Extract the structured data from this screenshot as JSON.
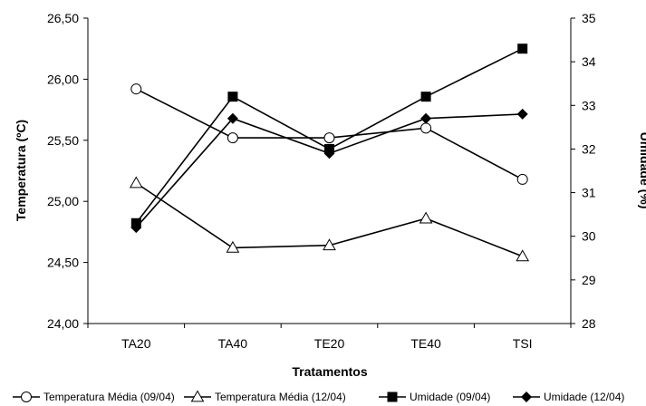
{
  "chart_data": {
    "type": "line",
    "categories": [
      "TA20",
      "TA40",
      "TE20",
      "TE40",
      "TSI"
    ],
    "xlabel": "Tratamentos",
    "ylabel": "Temperatura (ºC)",
    "y2label": "Umidade (%)",
    "ylim": [
      24.0,
      26.5
    ],
    "y2lim": [
      28,
      35
    ],
    "yticks": [
      "24,00",
      "24,50",
      "25,00",
      "25,50",
      "26,00",
      "26,50"
    ],
    "y2ticks": [
      "28",
      "29",
      "30",
      "31",
      "32",
      "33",
      "34",
      "35"
    ],
    "grid": false,
    "legend_position": "bottom",
    "series": [
      {
        "name": "Temperatura Média (09/04)",
        "axis": "left",
        "marker": "circle-open",
        "color": "#000000",
        "values": [
          25.92,
          25.52,
          25.52,
          25.6,
          25.18
        ]
      },
      {
        "name": "Temperatura Média (12/04)",
        "axis": "left",
        "marker": "triangle-open",
        "color": "#000000",
        "values": [
          25.15,
          24.62,
          24.64,
          24.86,
          24.55
        ]
      },
      {
        "name": "Umidade (09/04)",
        "axis": "right",
        "marker": "square-filled",
        "color": "#000000",
        "values": [
          30.3,
          33.2,
          32.0,
          33.2,
          34.3
        ]
      },
      {
        "name": "Umidade (12/04)",
        "axis": "right",
        "marker": "diamond-filled",
        "color": "#000000",
        "values": [
          30.2,
          32.7,
          31.9,
          32.7,
          32.8
        ]
      }
    ]
  }
}
